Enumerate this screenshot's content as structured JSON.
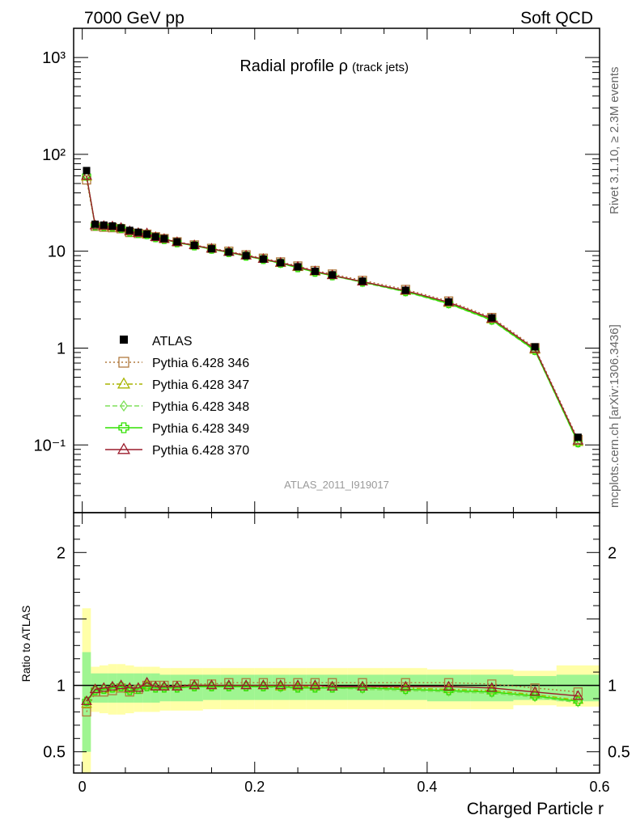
{
  "header": {
    "left": "7000 GeV pp",
    "right": "Soft QCD"
  },
  "side_text": {
    "rivet": "Rivet 3.1.10, ≥ 2.3M events",
    "mcplots": "mcplots.cern.ch [arXiv:1306.3436]"
  },
  "chart_data": {
    "type": "scatter",
    "title": "Radial profile ρ",
    "title_suffix": "(track jets)",
    "watermark": "ATLAS_2011_I919017",
    "xlabel": "Charged Particle r",
    "ylabel_ratio": "Ratio to ATLAS",
    "xlim": [
      -0.01,
      0.6
    ],
    "ylim_main": [
      0.02,
      2000
    ],
    "yscale_main": "log",
    "ylim_ratio": [
      0.34,
      2.3
    ],
    "x_ticks": [
      "0",
      "0.2",
      "0.4",
      "0.6"
    ],
    "y_ticks_main": [
      "10⁻¹",
      "1",
      "10",
      "10²",
      "10³"
    ],
    "y_ticks_ratio": [
      "0.5",
      "1",
      "2"
    ],
    "legend_position": "lower-left",
    "x": [
      0.005,
      0.015,
      0.025,
      0.035,
      0.045,
      0.055,
      0.065,
      0.075,
      0.085,
      0.095,
      0.11,
      0.13,
      0.15,
      0.17,
      0.19,
      0.21,
      0.23,
      0.25,
      0.27,
      0.29,
      0.325,
      0.375,
      0.425,
      0.475,
      0.525,
      0.575
    ],
    "data": {
      "name": "ATLAS",
      "values": [
        68,
        19,
        18.6,
        18.2,
        17.4,
        16.4,
        15.7,
        15.0,
        14.1,
        13.5,
        12.5,
        11.5,
        10.6,
        9.8,
        9.0,
        8.3,
        7.6,
        6.9,
        6.2,
        5.7,
        4.9,
        3.95,
        3.0,
        2.05,
        1.03,
        0.12
      ],
      "band_inner": [
        [
          0.5,
          1.25
        ],
        [
          0.87,
          1.09
        ],
        [
          0.87,
          1.09
        ],
        [
          0.87,
          1.09
        ],
        [
          0.87,
          1.09
        ],
        [
          0.87,
          1.09
        ],
        [
          0.87,
          1.09
        ],
        [
          0.87,
          1.09
        ],
        [
          0.87,
          1.09
        ],
        [
          0.88,
          1.08
        ],
        [
          0.88,
          1.08
        ],
        [
          0.88,
          1.08
        ],
        [
          0.89,
          1.08
        ],
        [
          0.89,
          1.08
        ],
        [
          0.89,
          1.08
        ],
        [
          0.89,
          1.08
        ],
        [
          0.89,
          1.08
        ],
        [
          0.89,
          1.08
        ],
        [
          0.89,
          1.08
        ],
        [
          0.89,
          1.08
        ],
        [
          0.89,
          1.08
        ],
        [
          0.89,
          1.08
        ],
        [
          0.88,
          1.08
        ],
        [
          0.88,
          1.08
        ],
        [
          0.89,
          1.07
        ],
        [
          0.88,
          1.08
        ]
      ],
      "band_outer": [
        [
          0.34,
          1.58
        ],
        [
          0.8,
          1.14
        ],
        [
          0.79,
          1.15
        ],
        [
          0.78,
          1.16
        ],
        [
          0.78,
          1.16
        ],
        [
          0.79,
          1.15
        ],
        [
          0.8,
          1.14
        ],
        [
          0.8,
          1.14
        ],
        [
          0.8,
          1.14
        ],
        [
          0.81,
          1.13
        ],
        [
          0.81,
          1.13
        ],
        [
          0.81,
          1.13
        ],
        [
          0.82,
          1.13
        ],
        [
          0.82,
          1.13
        ],
        [
          0.82,
          1.13
        ],
        [
          0.82,
          1.13
        ],
        [
          0.82,
          1.13
        ],
        [
          0.82,
          1.13
        ],
        [
          0.82,
          1.13
        ],
        [
          0.82,
          1.13
        ],
        [
          0.82,
          1.13
        ],
        [
          0.82,
          1.13
        ],
        [
          0.82,
          1.12
        ],
        [
          0.82,
          1.12
        ],
        [
          0.85,
          1.11
        ],
        [
          0.84,
          1.15
        ]
      ]
    },
    "series": [
      {
        "name": "Pythia 6.428 346",
        "color": "#b07a3e",
        "dash": "2,3",
        "marker": "square-open",
        "ratio": [
          0.8,
          0.95,
          0.95,
          0.96,
          0.98,
          0.95,
          0.97,
          1.0,
          1.0,
          1.0,
          1.0,
          1.01,
          1.01,
          1.02,
          1.02,
          1.02,
          1.02,
          1.02,
          1.02,
          1.02,
          1.02,
          1.02,
          1.02,
          1.01,
          0.98,
          0.95
        ]
      },
      {
        "name": "Pythia 6.428 347",
        "color": "#a8b400",
        "dash": "6,3,2,3",
        "marker": "triangle-open",
        "ratio": [
          0.86,
          0.97,
          0.97,
          0.98,
          0.99,
          0.97,
          0.98,
          1.0,
          0.99,
          0.99,
          0.99,
          1.0,
          1.0,
          1.0,
          1.0,
          1.0,
          0.99,
          0.99,
          0.99,
          0.99,
          0.99,
          0.98,
          0.97,
          0.96,
          0.93,
          0.89
        ]
      },
      {
        "name": "Pythia 6.428 348",
        "color": "#7fe05a",
        "dash": "6,3",
        "marker": "diamond-open",
        "ratio": [
          0.87,
          0.96,
          0.97,
          0.98,
          0.99,
          0.96,
          0.97,
          0.99,
          0.98,
          0.98,
          0.98,
          0.99,
          0.99,
          0.99,
          0.99,
          0.99,
          0.98,
          0.98,
          0.98,
          0.98,
          0.97,
          0.96,
          0.95,
          0.94,
          0.91,
          0.87
        ]
      },
      {
        "name": "Pythia 6.428 349",
        "color": "#30e000",
        "dash": "",
        "marker": "cross-open",
        "ratio": [
          0.88,
          0.96,
          0.97,
          0.98,
          0.99,
          0.96,
          0.97,
          0.99,
          0.98,
          0.98,
          0.98,
          0.99,
          0.99,
          0.99,
          0.99,
          0.99,
          0.99,
          0.98,
          0.98,
          0.98,
          0.98,
          0.97,
          0.96,
          0.95,
          0.92,
          0.88
        ]
      },
      {
        "name": "Pythia 6.428 370",
        "color": "#9b1b2b",
        "dash": "",
        "marker": "triangle-open",
        "ratio": [
          0.88,
          0.97,
          0.98,
          0.99,
          1.0,
          0.98,
          0.98,
          1.02,
          0.99,
          0.99,
          0.99,
          1.0,
          1.0,
          1.0,
          1.0,
          1.0,
          1.0,
          1.0,
          1.0,
          0.99,
          0.99,
          0.99,
          0.99,
          0.98,
          0.95,
          0.92
        ]
      }
    ]
  }
}
